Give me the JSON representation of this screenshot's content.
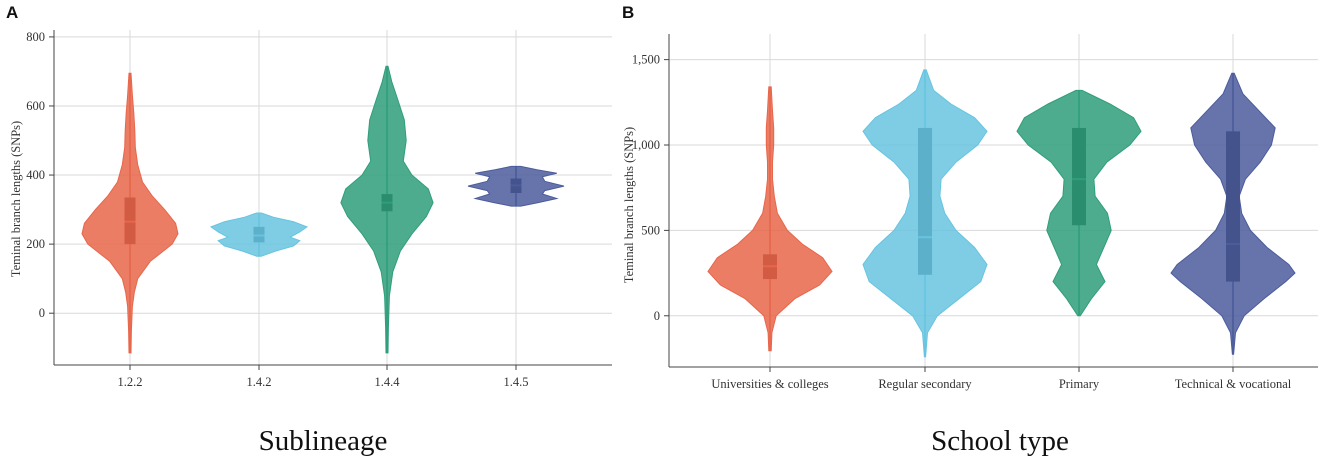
{
  "chart_data": [
    {
      "type": "violin",
      "panel_label": "A",
      "xlabel": "Sublineage",
      "ylabel": "Teminal branch lengths (SNPs)",
      "ylim": [
        -150,
        820
      ],
      "yticks": [
        0,
        200,
        400,
        600,
        800
      ],
      "ytick_labels": [
        "0",
        "200",
        "400",
        "600",
        "800"
      ],
      "categories": [
        "1.2.2",
        "1.4.2",
        "1.4.4",
        "1.4.5"
      ],
      "violins": [
        {
          "category": "1.2.2",
          "color": "#e8664a",
          "min": -115,
          "max": 695,
          "q1": 200,
          "median": 265,
          "q3": 335,
          "profile": [
            [
              -115,
              0.02
            ],
            [
              -50,
              0.03
            ],
            [
              20,
              0.05
            ],
            [
              60,
              0.09
            ],
            [
              100,
              0.16
            ],
            [
              150,
              0.42
            ],
            [
              200,
              0.88
            ],
            [
              230,
              1.0
            ],
            [
              260,
              0.95
            ],
            [
              300,
              0.72
            ],
            [
              340,
              0.46
            ],
            [
              380,
              0.26
            ],
            [
              430,
              0.16
            ],
            [
              480,
              0.11
            ],
            [
              530,
              0.1
            ],
            [
              580,
              0.08
            ],
            [
              630,
              0.05
            ],
            [
              695,
              0.02
            ]
          ]
        },
        {
          "category": "1.4.2",
          "color": "#67c4e0",
          "min": 165,
          "max": 290,
          "q1": 205,
          "median": 225,
          "q3": 250,
          "profile": [
            [
              165,
              0.05
            ],
            [
              180,
              0.35
            ],
            [
              195,
              0.72
            ],
            [
              210,
              0.85
            ],
            [
              220,
              0.65
            ],
            [
              235,
              0.85
            ],
            [
              250,
              1.0
            ],
            [
              265,
              0.72
            ],
            [
              278,
              0.3
            ],
            [
              290,
              0.05
            ]
          ]
        },
        {
          "category": "1.4.4",
          "color": "#2f9e7a",
          "min": -115,
          "max": 715,
          "q1": 295,
          "median": 320,
          "q3": 345,
          "profile": [
            [
              -115,
              0.02
            ],
            [
              -40,
              0.03
            ],
            [
              50,
              0.05
            ],
            [
              120,
              0.12
            ],
            [
              180,
              0.28
            ],
            [
              230,
              0.52
            ],
            [
              280,
              0.82
            ],
            [
              320,
              0.96
            ],
            [
              360,
              0.86
            ],
            [
              400,
              0.52
            ],
            [
              440,
              0.34
            ],
            [
              500,
              0.4
            ],
            [
              560,
              0.36
            ],
            [
              620,
              0.22
            ],
            [
              670,
              0.1
            ],
            [
              715,
              0.02
            ]
          ]
        },
        {
          "category": "1.4.5",
          "color": "#4b5c9c",
          "min": 310,
          "max": 425,
          "q1": 348,
          "median": 370,
          "q3": 390,
          "profile": [
            [
              310,
              0.1
            ],
            [
              320,
              0.45
            ],
            [
              332,
              0.85
            ],
            [
              345,
              0.55
            ],
            [
              355,
              0.6
            ],
            [
              368,
              1.0
            ],
            [
              382,
              0.6
            ],
            [
              395,
              0.55
            ],
            [
              405,
              0.85
            ],
            [
              415,
              0.45
            ],
            [
              425,
              0.1
            ]
          ]
        }
      ]
    },
    {
      "type": "violin",
      "panel_label": "B",
      "xlabel": "School type",
      "ylabel": "Teminal branch lengths (SNPs)",
      "ylim": [
        -300,
        1650
      ],
      "yticks": [
        0,
        500,
        1000,
        1500
      ],
      "ytick_labels": [
        "0",
        "500",
        "1,000",
        "1,500"
      ],
      "categories": [
        "Universities & colleges",
        "Regular secondary",
        "Primary",
        "Technical & vocational"
      ],
      "violins": [
        {
          "category": "Universities & colleges",
          "color": "#e8664a",
          "min": -205,
          "max": 1340,
          "q1": 215,
          "median": 290,
          "q3": 360,
          "profile": [
            [
              -205,
              0.02
            ],
            [
              -100,
              0.03
            ],
            [
              0,
              0.1
            ],
            [
              100,
              0.4
            ],
            [
              180,
              0.8
            ],
            [
              260,
              1.0
            ],
            [
              340,
              0.85
            ],
            [
              420,
              0.52
            ],
            [
              500,
              0.28
            ],
            [
              600,
              0.12
            ],
            [
              700,
              0.07
            ],
            [
              800,
              0.04
            ],
            [
              900,
              0.04
            ],
            [
              1000,
              0.06
            ],
            [
              1100,
              0.06
            ],
            [
              1200,
              0.04
            ],
            [
              1340,
              0.02
            ]
          ]
        },
        {
          "category": "Regular secondary",
          "color": "#67c4e0",
          "min": -240,
          "max": 1440,
          "q1": 240,
          "median": 460,
          "q3": 1100,
          "profile": [
            [
              -240,
              0.01
            ],
            [
              -100,
              0.04
            ],
            [
              0,
              0.2
            ],
            [
              100,
              0.55
            ],
            [
              200,
              0.9
            ],
            [
              300,
              1.0
            ],
            [
              400,
              0.8
            ],
            [
              500,
              0.5
            ],
            [
              600,
              0.32
            ],
            [
              700,
              0.24
            ],
            [
              800,
              0.26
            ],
            [
              900,
              0.5
            ],
            [
              1000,
              0.85
            ],
            [
              1080,
              1.0
            ],
            [
              1160,
              0.8
            ],
            [
              1240,
              0.42
            ],
            [
              1320,
              0.14
            ],
            [
              1440,
              0.02
            ]
          ]
        },
        {
          "category": "Primary",
          "color": "#2f9e7a",
          "min": 0,
          "max": 1320,
          "q1": 530,
          "median": 800,
          "q3": 1100,
          "profile": [
            [
              0,
              0.02
            ],
            [
              100,
              0.2
            ],
            [
              200,
              0.42
            ],
            [
              300,
              0.28
            ],
            [
              400,
              0.4
            ],
            [
              500,
              0.52
            ],
            [
              600,
              0.46
            ],
            [
              700,
              0.26
            ],
            [
              800,
              0.24
            ],
            [
              900,
              0.45
            ],
            [
              1000,
              0.82
            ],
            [
              1080,
              1.0
            ],
            [
              1160,
              0.88
            ],
            [
              1240,
              0.5
            ],
            [
              1320,
              0.05
            ]
          ]
        },
        {
          "category": "Technical & vocational",
          "color": "#4b5c9c",
          "min": -225,
          "max": 1420,
          "q1": 200,
          "median": 420,
          "q3": 1080,
          "profile": [
            [
              -225,
              0.01
            ],
            [
              -100,
              0.04
            ],
            [
              0,
              0.18
            ],
            [
              100,
              0.5
            ],
            [
              200,
              0.85
            ],
            [
              250,
              1.0
            ],
            [
              300,
              0.9
            ],
            [
              400,
              0.55
            ],
            [
              500,
              0.28
            ],
            [
              600,
              0.14
            ],
            [
              700,
              0.1
            ],
            [
              800,
              0.2
            ],
            [
              900,
              0.44
            ],
            [
              1000,
              0.62
            ],
            [
              1100,
              0.68
            ],
            [
              1200,
              0.42
            ],
            [
              1300,
              0.16
            ],
            [
              1420,
              0.02
            ]
          ]
        }
      ]
    }
  ]
}
